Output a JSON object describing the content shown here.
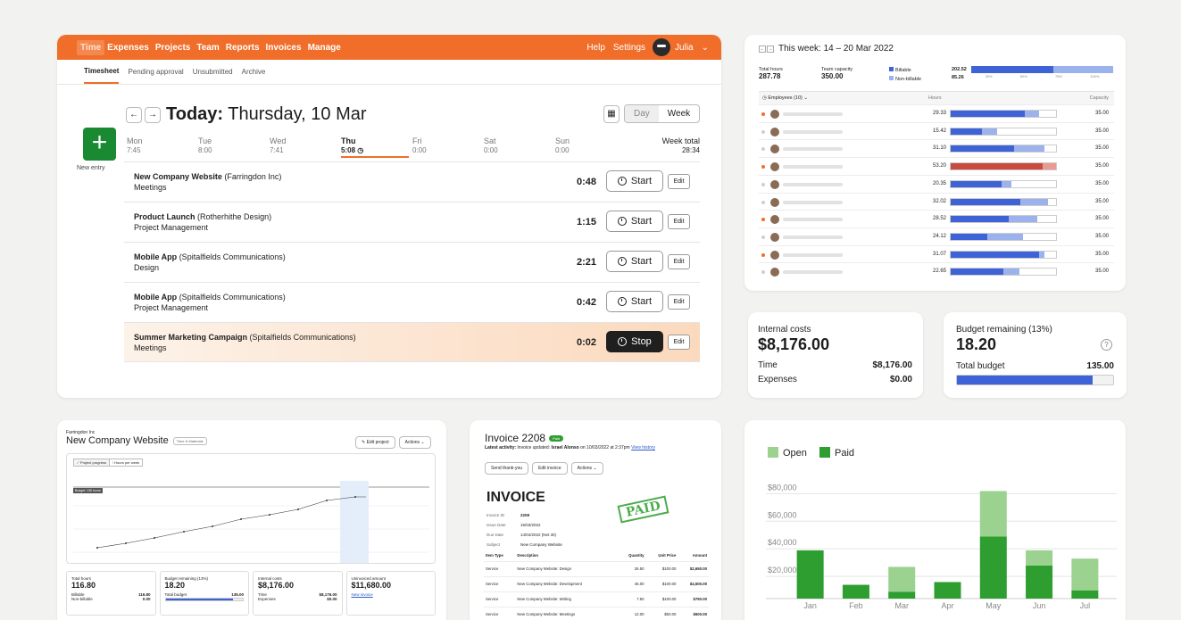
{
  "main": {
    "nav": {
      "items": [
        "Time",
        "Expenses",
        "Projects",
        "Team",
        "Reports",
        "Invoices",
        "Manage"
      ],
      "help": "Help",
      "settings": "Settings",
      "user": "Julia"
    },
    "subnav": [
      "Timesheet",
      "Pending approval",
      "Unsubmitted",
      "Archive"
    ],
    "title_prefix": "Today:",
    "title_date": "Thursday, 10 Mar",
    "view": {
      "day": "Day",
      "week": "Week"
    },
    "new_entry": "New entry",
    "days": [
      {
        "name": "Mon",
        "hours": "7:45"
      },
      {
        "name": "Tue",
        "hours": "8:00"
      },
      {
        "name": "Wed",
        "hours": "7:41"
      },
      {
        "name": "Thu",
        "hours": "5:08"
      },
      {
        "name": "Fri",
        "hours": "0:00"
      },
      {
        "name": "Sat",
        "hours": "0:00"
      },
      {
        "name": "Sun",
        "hours": "0:00"
      }
    ],
    "week_total_label": "Week total",
    "week_total": "28:34",
    "entries": [
      {
        "project": "New Company Website",
        "client": "(Farringdon Inc)",
        "task": "Meetings",
        "duration": "0:48",
        "button": "Start"
      },
      {
        "project": "Product Launch",
        "client": "(Rotherhithe Design)",
        "task": "Project Management",
        "duration": "1:15",
        "button": "Start"
      },
      {
        "project": "Mobile App",
        "client": "(Spitalfields Communications)",
        "task": "Design",
        "duration": "2:21",
        "button": "Start"
      },
      {
        "project": "Mobile App",
        "client": "(Spitalfields Communications)",
        "task": "Project Management",
        "duration": "0:42",
        "button": "Start"
      },
      {
        "project": "Summer Marketing Campaign",
        "client": "(Spitalfields Communications)",
        "task": "Meetings",
        "duration": "0:02",
        "button": "Stop"
      }
    ],
    "edit_label": "Edit"
  },
  "week": {
    "title": "This week: 14 – 20 Mar 2022",
    "total_hours_label": "Total hours",
    "total_hours": "287.78",
    "team_capacity_label": "Team capacity",
    "team_capacity": "350.00",
    "billable_label": "Billable",
    "billable": "202.52",
    "nonbillable_label": "Non-billable",
    "nonbillable": "85.26",
    "scale": [
      "25%",
      "50%",
      "75%",
      "100%"
    ],
    "employees_label": "Employees (10)",
    "hours_col": "Hours",
    "capacity_col": "Capacity",
    "rows": [
      {
        "hours": "29.33",
        "billable_pct": 0.7,
        "total_pct": 0.84,
        "capacity": "35.00",
        "dot": "#f06e2a"
      },
      {
        "hours": "15.42",
        "billable_pct": 0.3,
        "total_pct": 0.44,
        "capacity": "35.00",
        "dot": "#cfcfcf"
      },
      {
        "hours": "31.10",
        "billable_pct": 0.6,
        "total_pct": 0.89,
        "capacity": "35.00",
        "dot": "#cfcfcf"
      },
      {
        "hours": "53.20",
        "billable_pct": 0.87,
        "total_pct": 1.0,
        "capacity": "35.00",
        "dot": "#f06e2a",
        "over": true
      },
      {
        "hours": "20.35",
        "billable_pct": 0.48,
        "total_pct": 0.58,
        "capacity": "35.00",
        "dot": "#cfcfcf"
      },
      {
        "hours": "32.02",
        "billable_pct": 0.66,
        "total_pct": 0.92,
        "capacity": "35.00",
        "dot": "#cfcfcf"
      },
      {
        "hours": "28.52",
        "billable_pct": 0.55,
        "total_pct": 0.82,
        "capacity": "35.00",
        "dot": "#f06e2a"
      },
      {
        "hours": "24.12",
        "billable_pct": 0.35,
        "total_pct": 0.69,
        "capacity": "35.00",
        "dot": "#cfcfcf"
      },
      {
        "hours": "31.07",
        "billable_pct": 0.84,
        "total_pct": 0.89,
        "capacity": "35.00",
        "dot": "#f06e2a"
      },
      {
        "hours": "22.65",
        "billable_pct": 0.5,
        "total_pct": 0.65,
        "capacity": "35.00",
        "dot": "#cfcfcf"
      }
    ]
  },
  "costs": {
    "label": "Internal costs",
    "value": "$8,176.00",
    "time_label": "Time",
    "time_value": "$8,176.00",
    "expenses_label": "Expenses",
    "expenses_value": "$0.00"
  },
  "budget": {
    "label": "Budget remaining (13%)",
    "value": "18.20",
    "total_label": "Total budget",
    "total_value": "135.00",
    "used_pct": 0.87
  },
  "project": {
    "client": "Farringdon Inc",
    "name": "New Company Website",
    "badge": "Time & Materials",
    "edit": "Edit project",
    "actions": "Actions",
    "tabs": [
      "Project progress",
      "Hours per week"
    ],
    "budget_tag": "Budget: 135 hours",
    "stats": [
      {
        "label": "Total hours",
        "value": "116.80",
        "l1": "Billable",
        "v1": "116.80",
        "l2": "Non-billable",
        "v2": "0.00"
      },
      {
        "label": "Budget remaining (13%)",
        "value": "18.20",
        "l1": "Total budget",
        "v1": "135.00"
      },
      {
        "label": "Internal costs",
        "value": "$8,176.00",
        "l1": "Time",
        "v1": "$8,176.00",
        "l2": "Expenses",
        "v2": "$0.00"
      },
      {
        "label": "Uninvoiced amount",
        "value": "$11,680.00",
        "l1": "New invoice"
      }
    ]
  },
  "invoice": {
    "title": "Invoice 2208",
    "badge": "Paid",
    "activity_label": "Latest activity:",
    "activity": "Invoice updated:",
    "activity_user": "Israel Alonso",
    "activity_time": "on 10/03/2022 at 2:37pm",
    "history_link": "View history",
    "buttons": [
      "Send thank-you",
      "Edit invoice",
      "Actions"
    ],
    "heading": "INVOICE",
    "stamp": "PAID",
    "meta": [
      {
        "k": "Invoice ID",
        "v": "2208"
      },
      {
        "k": "Issue Date",
        "v": "15/03/2022"
      },
      {
        "k": "Due Date",
        "v": "14/04/2022 (Net 30)"
      },
      {
        "k": "Subject",
        "v": "New Company Website"
      }
    ],
    "columns": [
      "Item Type",
      "Description",
      "Quantity",
      "Unit Price",
      "Amount"
    ],
    "items": [
      {
        "type": "Service",
        "desc": "New Company Website: Design",
        "qty": "26.50",
        "price": "$100.00",
        "amount": "$2,650.00"
      },
      {
        "type": "Service",
        "desc": "New Company Website: Development",
        "qty": "45.00",
        "price": "$100.00",
        "amount": "$4,500.00"
      },
      {
        "type": "Service",
        "desc": "New Company Website: Writing",
        "qty": "7.50",
        "price": "$100.00",
        "amount": "$750.00"
      },
      {
        "type": "Service",
        "desc": "New Company Website: Meetings",
        "qty": "12.00",
        "price": "$50.00",
        "amount": "$600.00"
      }
    ]
  },
  "chart_data": {
    "type": "bar",
    "stacked": true,
    "categories": [
      "Jan",
      "Feb",
      "Mar",
      "Apr",
      "May",
      "Jun",
      "Jul"
    ],
    "series": [
      {
        "name": "Paid",
        "color": "#2e9e30",
        "values": [
          35000,
          10000,
          5000,
          12000,
          45000,
          24000,
          6000
        ]
      },
      {
        "name": "Open",
        "color": "#9bd28f",
        "values": [
          0,
          0,
          18000,
          0,
          33000,
          11000,
          23000
        ]
      }
    ],
    "legend": [
      "Open",
      "Paid"
    ],
    "yticks": [
      "$80,000",
      "$60,000",
      "$40,000",
      "$20,000"
    ],
    "ylim": [
      0,
      88000
    ],
    "grid": true,
    "legend_position": "top-left"
  }
}
